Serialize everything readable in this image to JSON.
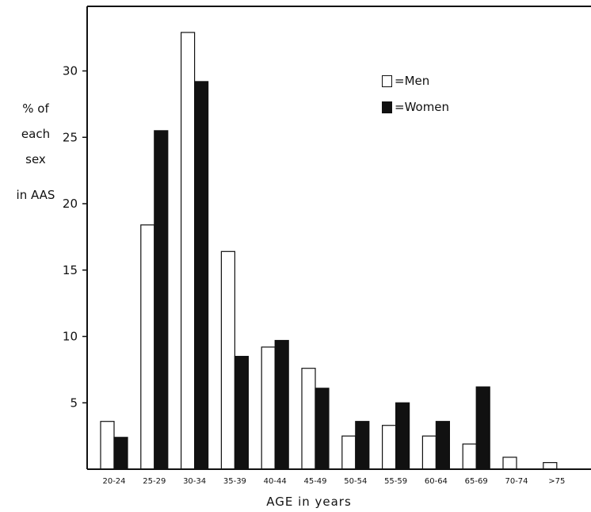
{
  "chart_data": {
    "type": "bar",
    "categories": [
      "20-24",
      "25-29",
      "30-34",
      "35-39",
      "40-44",
      "45-49",
      "50-54",
      "55-59",
      "60-64",
      "65-69",
      "70-74",
      ">75"
    ],
    "series": [
      {
        "name": "=Men",
        "values": [
          3.6,
          18.4,
          32.9,
          16.4,
          9.2,
          7.6,
          2.5,
          3.3,
          2.5,
          1.9,
          0.9,
          0.5
        ]
      },
      {
        "name": "=Women",
        "values": [
          2.4,
          25.5,
          29.2,
          8.5,
          9.7,
          6.1,
          3.6,
          5.0,
          3.6,
          6.2,
          0,
          0
        ]
      }
    ],
    "series_colors": {
      "=Men": "#ffffff",
      "=Women": "#111111"
    },
    "ylabel_lines": [
      "% of",
      "each",
      "sex",
      "in AAS"
    ],
    "xlabel": "AGE  in years",
    "yticks": [
      5,
      10,
      15,
      20,
      25,
      30
    ],
    "ylim": [
      0,
      34
    ],
    "grid": false,
    "legend_position": "top-right"
  }
}
